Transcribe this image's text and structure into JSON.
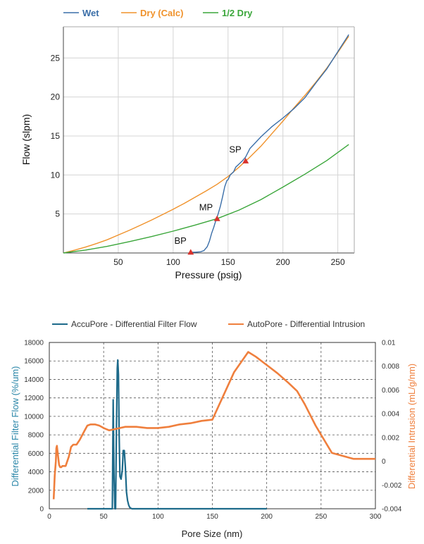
{
  "chart_data": [
    {
      "type": "line",
      "xlabel": "Pressure (psig)",
      "ylabel": "Flow (slpm)",
      "xlim": [
        0,
        265
      ],
      "ylim": [
        0,
        29
      ],
      "xticks": [
        50,
        100,
        150,
        200,
        250
      ],
      "yticks": [
        5,
        10,
        15,
        20,
        25
      ],
      "grid": true,
      "legend_position": "top",
      "colors": {
        "wet": "#3a6ea8",
        "dry": "#f0922b",
        "half": "#3aa63a",
        "marker": "#d9322c"
      },
      "series": [
        {
          "name": "Wet",
          "x": [
            115,
            120,
            125,
            128,
            131,
            133,
            135,
            137,
            139,
            141,
            143,
            145,
            147,
            149,
            150,
            152,
            155,
            157,
            160,
            163,
            166,
            170,
            180,
            190,
            200,
            210,
            220,
            230,
            240,
            250,
            260
          ],
          "y": [
            0.1,
            0.1,
            0.15,
            0.3,
            0.8,
            1.5,
            2.5,
            3.3,
            4.2,
            5.0,
            6.0,
            7.2,
            8.5,
            9.3,
            9.4,
            10.0,
            10.4,
            11.0,
            11.4,
            11.8,
            12.3,
            13.4,
            14.9,
            16.2,
            17.3,
            18.5,
            19.9,
            21.8,
            23.6,
            25.8,
            28.0
          ]
        },
        {
          "name": "Dry (Calc)",
          "x": [
            0,
            10,
            20,
            30,
            40,
            50,
            60,
            70,
            80,
            90,
            100,
            110,
            120,
            130,
            140,
            150,
            160,
            170,
            180,
            190,
            200,
            210,
            220,
            230,
            240,
            250,
            260
          ],
          "y": [
            0,
            0.35,
            0.75,
            1.2,
            1.7,
            2.3,
            2.9,
            3.55,
            4.2,
            4.9,
            5.6,
            6.35,
            7.15,
            7.95,
            8.8,
            9.8,
            11.0,
            12.3,
            13.7,
            15.3,
            16.9,
            18.6,
            20.2,
            21.9,
            23.7,
            25.7,
            27.8
          ]
        },
        {
          "name": "1/2 Dry",
          "x": [
            0,
            20,
            40,
            60,
            80,
            100,
            120,
            140,
            160,
            180,
            200,
            220,
            240,
            260
          ],
          "y": [
            0,
            0.37,
            0.85,
            1.45,
            2.1,
            2.8,
            3.58,
            4.4,
            5.5,
            6.85,
            8.45,
            10.1,
            11.85,
            13.9
          ]
        }
      ],
      "markers": [
        {
          "label": "BP",
          "x": 116,
          "y": 0.1
        },
        {
          "label": "MP",
          "x": 140,
          "y": 4.4
        },
        {
          "label": "SP",
          "x": 166,
          "y": 11.8
        }
      ]
    },
    {
      "type": "line",
      "xlabel": "Pore Size (nm)",
      "ylabel": "Differential Filter Flow (%/um)",
      "y2label": "Differential Intrusion (mL/g/nm)",
      "xlim": [
        0,
        300
      ],
      "ylim": [
        0,
        18000
      ],
      "y2lim": [
        -0.004,
        0.01
      ],
      "xticks": [
        0,
        50,
        100,
        150,
        200,
        250,
        300
      ],
      "yticks": [
        0,
        2000,
        4000,
        6000,
        8000,
        10000,
        12000,
        14000,
        16000,
        18000
      ],
      "y2ticks": [
        "-0.004",
        "-0.002",
        "0",
        "0.002",
        "0.004",
        "0.006",
        "0.008",
        "0.01"
      ],
      "grid": true,
      "legend_position": "top",
      "colors": {
        "accupore": "#1d6a8a",
        "autopore": "#ef7f3d",
        "y2axis": "#ef7f3d",
        "yaxis": "#2a86a8"
      },
      "series": [
        {
          "name": "AccuPore - Differential Filter Flow",
          "axis": "left",
          "x": [
            35,
            55,
            58,
            58.8,
            59.5,
            60.3,
            61,
            61.8,
            62.5,
            63,
            63.6,
            64.3,
            65,
            66,
            67.2,
            68,
            69,
            70,
            71,
            72,
            73,
            74,
            75,
            76,
            200
          ],
          "y": [
            0,
            0,
            0,
            11800,
            4000,
            0,
            0,
            9000,
            15200,
            16100,
            14500,
            8000,
            3500,
            3200,
            4200,
            6300,
            6300,
            4500,
            1800,
            900,
            400,
            150,
            50,
            0,
            0
          ]
        },
        {
          "name": "AutoPore - Differential Intrusion",
          "axis": "right",
          "x": [
            4,
            5,
            6,
            6.5,
            7,
            8,
            9,
            10,
            11,
            12,
            13,
            15,
            18,
            20,
            22,
            25,
            28,
            32,
            35,
            38,
            42,
            46,
            50,
            55,
            60,
            65,
            70,
            80,
            90,
            100,
            110,
            120,
            130,
            140,
            150,
            160,
            170,
            183,
            190,
            200,
            210,
            220,
            228,
            235,
            245,
            260,
            280,
            300
          ],
          "y": [
            -0.0032,
            -0.0012,
            0,
            0.0011,
            0.0013,
            0.0005,
            -0.0003,
            -0.0005,
            -0.0005,
            -0.0004,
            -0.0004,
            -0.0004,
            0.0004,
            0.0012,
            0.0014,
            0.0014,
            0.0018,
            0.0025,
            0.003,
            0.0031,
            0.0031,
            0.003,
            0.0028,
            0.0026,
            0.0027,
            0.0028,
            0.0029,
            0.0029,
            0.0028,
            0.0028,
            0.0029,
            0.0031,
            0.0032,
            0.0034,
            0.0035,
            0.0055,
            0.0075,
            0.0092,
            0.0088,
            0.0081,
            0.0074,
            0.0066,
            0.0059,
            0.0048,
            0.003,
            0.0007,
            0.0002,
            0.0002
          ]
        }
      ]
    }
  ]
}
